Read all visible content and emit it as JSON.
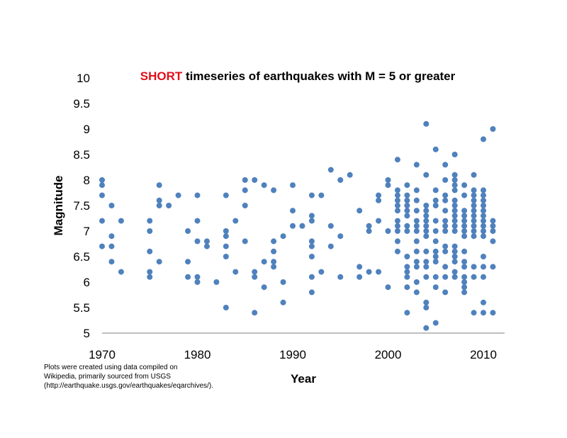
{
  "chart_data": {
    "type": "scatter",
    "title_highlight": "SHORT",
    "title_rest": " timeseries of earthquakes with M = 5 or greater",
    "xlabel": "Year",
    "ylabel": "Magnitude",
    "xlim": [
      1970,
      2012
    ],
    "ylim": [
      5,
      10
    ],
    "xticks": [
      1970,
      1980,
      1990,
      2000,
      2010
    ],
    "yticks": [
      "10",
      "9.5",
      "9",
      "8.5",
      "8",
      "7.5",
      "7",
      "6.5",
      "6",
      "5.5",
      "5"
    ],
    "grid": false,
    "marker_color": "#4f81bd",
    "points": [
      [
        1970,
        8.0
      ],
      [
        1970,
        7.9
      ],
      [
        1970,
        7.7
      ],
      [
        1970,
        7.2
      ],
      [
        1970,
        6.7
      ],
      [
        1971,
        7.5
      ],
      [
        1971,
        6.9
      ],
      [
        1971,
        6.7
      ],
      [
        1971,
        6.4
      ],
      [
        1972,
        7.2
      ],
      [
        1972,
        6.2
      ],
      [
        1975,
        7.2
      ],
      [
        1975,
        7.0
      ],
      [
        1975,
        6.6
      ],
      [
        1975,
        6.2
      ],
      [
        1975,
        6.1
      ],
      [
        1976,
        7.9
      ],
      [
        1976,
        7.6
      ],
      [
        1976,
        7.5
      ],
      [
        1976,
        6.4
      ],
      [
        1977,
        7.5
      ],
      [
        1978,
        7.7
      ],
      [
        1979,
        7.0
      ],
      [
        1979,
        6.4
      ],
      [
        1979,
        6.1
      ],
      [
        1980,
        7.7
      ],
      [
        1980,
        7.2
      ],
      [
        1980,
        6.8
      ],
      [
        1980,
        6.1
      ],
      [
        1980,
        6.0
      ],
      [
        1981,
        6.8
      ],
      [
        1981,
        6.7
      ],
      [
        1982,
        6.0
      ],
      [
        1983,
        7.7
      ],
      [
        1983,
        7.0
      ],
      [
        1983,
        6.9
      ],
      [
        1983,
        6.7
      ],
      [
        1983,
        6.5
      ],
      [
        1983,
        5.5
      ],
      [
        1984,
        7.2
      ],
      [
        1984,
        6.2
      ],
      [
        1985,
        8.0
      ],
      [
        1985,
        7.8
      ],
      [
        1985,
        7.5
      ],
      [
        1985,
        6.8
      ],
      [
        1986,
        8.0
      ],
      [
        1986,
        6.2
      ],
      [
        1986,
        6.1
      ],
      [
        1986,
        5.4
      ],
      [
        1987,
        7.9
      ],
      [
        1987,
        6.4
      ],
      [
        1987,
        5.9
      ],
      [
        1988,
        7.8
      ],
      [
        1988,
        6.8
      ],
      [
        1988,
        6.6
      ],
      [
        1988,
        6.4
      ],
      [
        1988,
        6.3
      ],
      [
        1989,
        6.9
      ],
      [
        1989,
        6.0
      ],
      [
        1989,
        5.6
      ],
      [
        1990,
        7.9
      ],
      [
        1990,
        7.4
      ],
      [
        1990,
        7.1
      ],
      [
        1991,
        7.1
      ],
      [
        1992,
        7.7
      ],
      [
        1992,
        7.3
      ],
      [
        1992,
        7.2
      ],
      [
        1992,
        6.8
      ],
      [
        1992,
        6.7
      ],
      [
        1992,
        6.5
      ],
      [
        1992,
        6.1
      ],
      [
        1992,
        5.8
      ],
      [
        1993,
        7.7
      ],
      [
        1993,
        6.2
      ],
      [
        1994,
        8.2
      ],
      [
        1994,
        7.1
      ],
      [
        1994,
        6.7
      ],
      [
        1995,
        8.0
      ],
      [
        1995,
        6.9
      ],
      [
        1995,
        6.1
      ],
      [
        1996,
        8.1
      ],
      [
        1997,
        7.4
      ],
      [
        1997,
        6.3
      ],
      [
        1997,
        6.1
      ],
      [
        1998,
        7.1
      ],
      [
        1998,
        7.0
      ],
      [
        1998,
        6.2
      ],
      [
        1999,
        7.7
      ],
      [
        1999,
        7.6
      ],
      [
        1999,
        7.2
      ],
      [
        1999,
        6.2
      ],
      [
        2000,
        8.0
      ],
      [
        2000,
        7.9
      ],
      [
        2000,
        7.0
      ],
      [
        2000,
        5.9
      ],
      [
        2001,
        8.4
      ],
      [
        2001,
        7.8
      ],
      [
        2001,
        7.7
      ],
      [
        2001,
        7.6
      ],
      [
        2001,
        7.5
      ],
      [
        2001,
        7.4
      ],
      [
        2001,
        7.2
      ],
      [
        2001,
        7.1
      ],
      [
        2001,
        7.0
      ],
      [
        2001,
        6.8
      ],
      [
        2001,
        6.6
      ],
      [
        2002,
        7.9
      ],
      [
        2002,
        7.7
      ],
      [
        2002,
        7.6
      ],
      [
        2002,
        7.5
      ],
      [
        2002,
        7.4
      ],
      [
        2002,
        7.3
      ],
      [
        2002,
        7.1
      ],
      [
        2002,
        7.0
      ],
      [
        2002,
        6.5
      ],
      [
        2002,
        6.3
      ],
      [
        2002,
        6.2
      ],
      [
        2002,
        6.1
      ],
      [
        2002,
        5.9
      ],
      [
        2002,
        5.4
      ],
      [
        2003,
        8.3
      ],
      [
        2003,
        7.8
      ],
      [
        2003,
        7.6
      ],
      [
        2003,
        7.4
      ],
      [
        2003,
        7.2
      ],
      [
        2003,
        7.1
      ],
      [
        2003,
        7.0
      ],
      [
        2003,
        6.8
      ],
      [
        2003,
        6.6
      ],
      [
        2003,
        6.4
      ],
      [
        2003,
        6.3
      ],
      [
        2003,
        6.0
      ],
      [
        2003,
        5.8
      ],
      [
        2004,
        9.1
      ],
      [
        2004,
        8.1
      ],
      [
        2004,
        7.5
      ],
      [
        2004,
        7.4
      ],
      [
        2004,
        7.3
      ],
      [
        2004,
        7.2
      ],
      [
        2004,
        7.1
      ],
      [
        2004,
        7.0
      ],
      [
        2004,
        6.9
      ],
      [
        2004,
        6.6
      ],
      [
        2004,
        6.4
      ],
      [
        2004,
        6.3
      ],
      [
        2004,
        6.1
      ],
      [
        2004,
        5.6
      ],
      [
        2004,
        5.5
      ],
      [
        2004,
        5.1
      ],
      [
        2005,
        8.6
      ],
      [
        2005,
        7.8
      ],
      [
        2005,
        7.6
      ],
      [
        2005,
        7.5
      ],
      [
        2005,
        7.2
      ],
      [
        2005,
        7.0
      ],
      [
        2005,
        6.8
      ],
      [
        2005,
        6.6
      ],
      [
        2005,
        6.5
      ],
      [
        2005,
        6.4
      ],
      [
        2005,
        6.1
      ],
      [
        2005,
        5.9
      ],
      [
        2005,
        5.2
      ],
      [
        2006,
        8.3
      ],
      [
        2006,
        8.0
      ],
      [
        2006,
        7.7
      ],
      [
        2006,
        7.6
      ],
      [
        2006,
        7.4
      ],
      [
        2006,
        7.2
      ],
      [
        2006,
        7.1
      ],
      [
        2006,
        7.0
      ],
      [
        2006,
        6.7
      ],
      [
        2006,
        6.6
      ],
      [
        2006,
        6.3
      ],
      [
        2006,
        6.1
      ],
      [
        2006,
        5.8
      ],
      [
        2007,
        8.5
      ],
      [
        2007,
        8.1
      ],
      [
        2007,
        8.0
      ],
      [
        2007,
        7.9
      ],
      [
        2007,
        7.8
      ],
      [
        2007,
        7.6
      ],
      [
        2007,
        7.5
      ],
      [
        2007,
        7.4
      ],
      [
        2007,
        7.3
      ],
      [
        2007,
        7.2
      ],
      [
        2007,
        7.1
      ],
      [
        2007,
        7.0
      ],
      [
        2007,
        6.7
      ],
      [
        2007,
        6.6
      ],
      [
        2007,
        6.5
      ],
      [
        2007,
        6.4
      ],
      [
        2007,
        6.2
      ],
      [
        2007,
        6.1
      ],
      [
        2008,
        7.9
      ],
      [
        2008,
        7.7
      ],
      [
        2008,
        7.4
      ],
      [
        2008,
        7.3
      ],
      [
        2008,
        7.2
      ],
      [
        2008,
        7.1
      ],
      [
        2008,
        7.0
      ],
      [
        2008,
        6.9
      ],
      [
        2008,
        6.6
      ],
      [
        2008,
        6.4
      ],
      [
        2008,
        6.3
      ],
      [
        2008,
        6.1
      ],
      [
        2008,
        6.0
      ],
      [
        2008,
        5.9
      ],
      [
        2008,
        5.8
      ],
      [
        2009,
        8.1
      ],
      [
        2009,
        7.8
      ],
      [
        2009,
        7.7
      ],
      [
        2009,
        7.6
      ],
      [
        2009,
        7.5
      ],
      [
        2009,
        7.4
      ],
      [
        2009,
        7.3
      ],
      [
        2009,
        7.2
      ],
      [
        2009,
        7.1
      ],
      [
        2009,
        7.0
      ],
      [
        2009,
        6.9
      ],
      [
        2009,
        6.3
      ],
      [
        2009,
        6.1
      ],
      [
        2009,
        5.4
      ],
      [
        2010,
        8.8
      ],
      [
        2010,
        7.8
      ],
      [
        2010,
        7.7
      ],
      [
        2010,
        7.6
      ],
      [
        2010,
        7.5
      ],
      [
        2010,
        7.4
      ],
      [
        2010,
        7.3
      ],
      [
        2010,
        7.2
      ],
      [
        2010,
        7.1
      ],
      [
        2010,
        7.0
      ],
      [
        2010,
        6.9
      ],
      [
        2010,
        6.5
      ],
      [
        2010,
        6.3
      ],
      [
        2010,
        6.1
      ],
      [
        2010,
        5.6
      ],
      [
        2010,
        5.4
      ],
      [
        2011,
        9.0
      ],
      [
        2011,
        7.2
      ],
      [
        2011,
        7.1
      ],
      [
        2011,
        7.0
      ],
      [
        2011,
        6.8
      ],
      [
        2011,
        6.3
      ],
      [
        2011,
        5.4
      ]
    ]
  },
  "note": {
    "line1": "Plots were created using data compiled on",
    "line2": "Wikipedia, primarily sourced from USGS",
    "line3": "(http://earthquake.usgs.gov/earthquakes/eqarchives/)."
  }
}
